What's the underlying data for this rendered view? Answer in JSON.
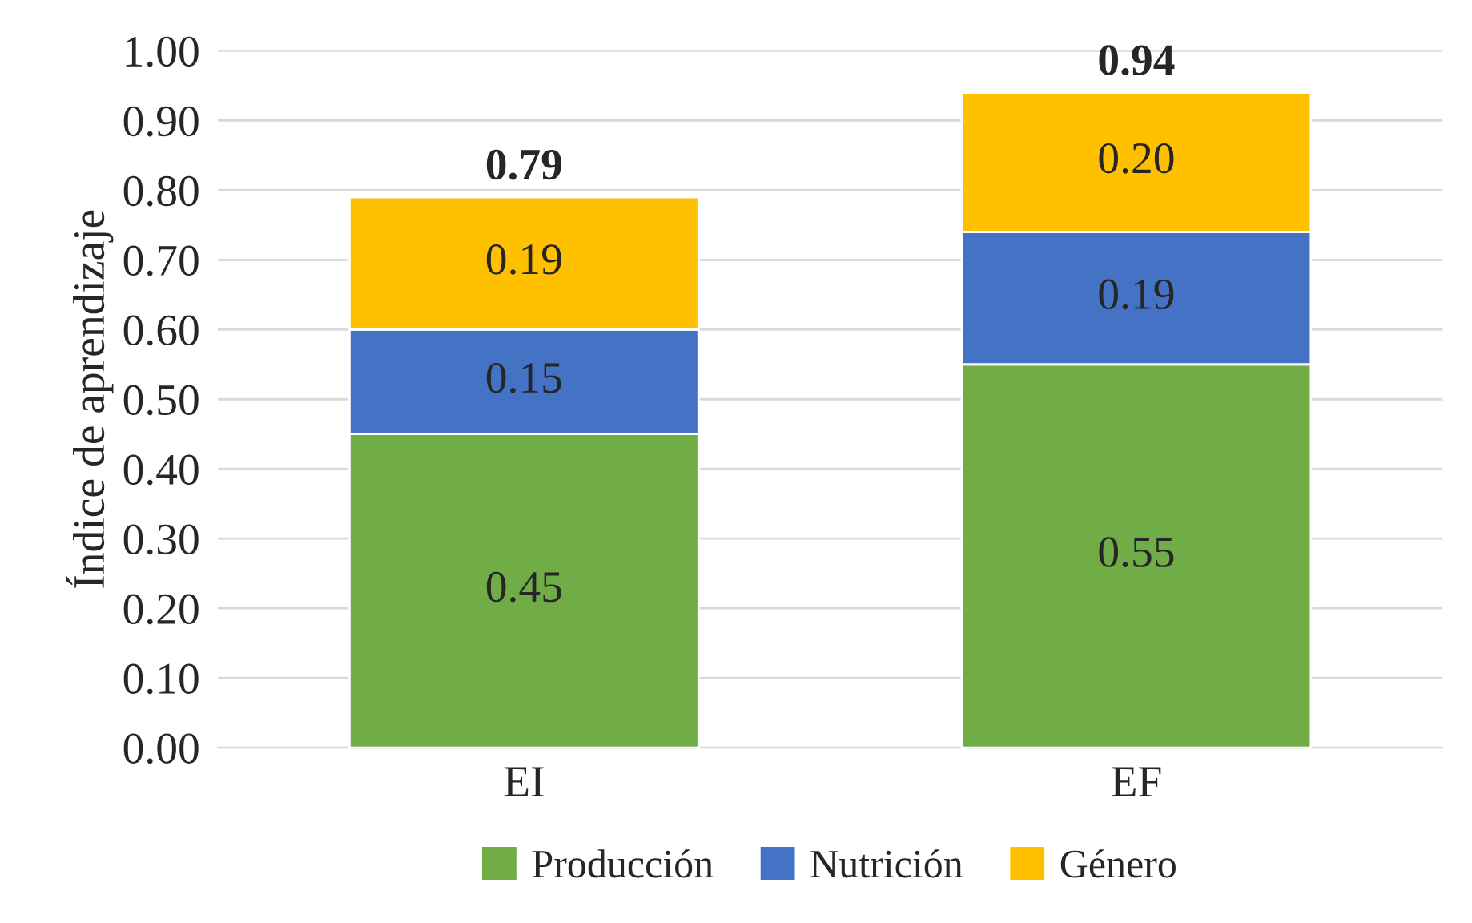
{
  "chart_data": {
    "type": "bar",
    "ylabel": "Índice de aprendizaje",
    "categories": [
      "EI",
      "EF"
    ],
    "stacked": true,
    "series": [
      {
        "name": "Producción",
        "color": "#70ad47",
        "values": [
          0.45,
          0.55
        ],
        "value_labels": [
          "0.45",
          "0.55"
        ]
      },
      {
        "name": "Nutrición",
        "color": "#4472c4",
        "values": [
          0.15,
          0.19
        ],
        "value_labels": [
          "0.15",
          "0.19"
        ]
      },
      {
        "name": "Género",
        "color": "#ffc000",
        "values": [
          0.19,
          0.2
        ],
        "value_labels": [
          "0.19",
          "0.20"
        ]
      }
    ],
    "totals": [
      "0.79",
      "0.94"
    ],
    "ylim": [
      0,
      1
    ],
    "yticks": [
      {
        "value": 0,
        "label": "0.00"
      },
      {
        "value": 0.1,
        "label": "0.10"
      },
      {
        "value": 0.2,
        "label": "0.20"
      },
      {
        "value": 0.3,
        "label": "0.30"
      },
      {
        "value": 0.4,
        "label": "0.40"
      },
      {
        "value": 0.5,
        "label": "0.50"
      },
      {
        "value": 0.6,
        "label": "0.60"
      },
      {
        "value": 0.7,
        "label": "0.70"
      },
      {
        "value": 0.8,
        "label": "0.80"
      },
      {
        "value": 0.9,
        "label": "0.90"
      },
      {
        "value": 1,
        "label": "1.00"
      }
    ],
    "grid": "y",
    "legend": "bottom"
  }
}
